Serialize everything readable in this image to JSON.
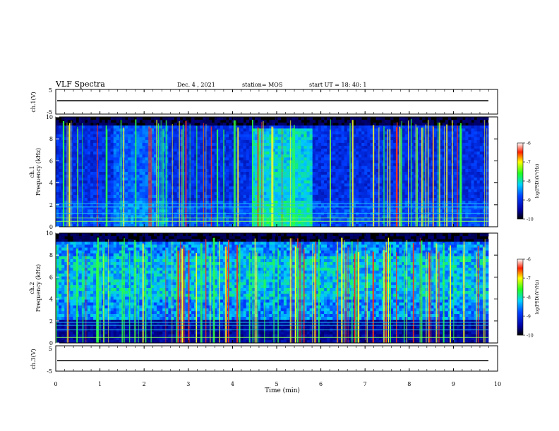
{
  "header": {
    "title": "VLF Spectra",
    "date": "Dec. 4 , 2021",
    "station": "station= MOS",
    "start": "start UT = 18: 40: 1"
  },
  "chart_data": [
    {
      "type": "line",
      "panel": "ch1-waveform",
      "ylabel": "ch.1(V)",
      "ylim": [
        -5,
        5
      ],
      "yticks": [
        "5",
        "-5"
      ],
      "series": [
        {
          "values_description": "flat trace near 0 V",
          "x": [
            0,
            9.85
          ],
          "y": [
            0,
            0
          ]
        }
      ]
    },
    {
      "type": "heatmap",
      "panel": "ch1-spectrogram",
      "ylabel": "ch.1 Frequency (kHz)",
      "ylim": [
        0,
        10
      ],
      "yticks": [
        "0",
        "2",
        "4",
        "6",
        "8",
        "10"
      ],
      "colorbar": {
        "label": "log(PSD)(V^2/Hz)",
        "range": [
          -10,
          -6
        ],
        "ticks": [
          "-6",
          "-7",
          "-8",
          "-9",
          "-10"
        ]
      },
      "notes": [
        "enhanced emission band about 4.5-5.7 min up to ~9 kHz",
        "broadband impulsive events (sferics) throughout",
        "horizontal lines near 0.5, 0.8, 1.2, 1.8, 2.1 kHz"
      ]
    },
    {
      "type": "heatmap",
      "panel": "ch2-spectrogram",
      "ylabel": "ch.2 Frequency (kHz)",
      "ylim": [
        0,
        10
      ],
      "yticks": [
        "0",
        "2",
        "4",
        "6",
        "8",
        "10"
      ],
      "colorbar": {
        "label": "log(PSD)(V^2/Hz)",
        "range": [
          -10,
          -6
        ],
        "ticks": [
          "-6",
          "-7",
          "-8",
          "-9",
          "-10"
        ]
      },
      "notes": [
        "dense broadband sferics 2-10 kHz across whole interval",
        "horizontal lines near 0.5, 1.2, 1.6, 1.9 kHz"
      ]
    },
    {
      "type": "line",
      "panel": "ch3-waveform",
      "ylabel": "ch.3(V)",
      "ylim": [
        -5,
        5
      ],
      "yticks": [
        "5",
        "-5"
      ],
      "series": [
        {
          "values_description": "flat trace near 0 V",
          "x": [
            0,
            9.85
          ],
          "y": [
            0,
            0
          ]
        }
      ]
    }
  ],
  "xaxis": {
    "label": "Time (min)",
    "range": [
      0,
      10
    ],
    "ticks": [
      "0",
      "1",
      "2",
      "3",
      "4",
      "5",
      "6",
      "7",
      "8",
      "9",
      "10"
    ]
  },
  "colorbar_label": "log(PSD)(V²/Hz)",
  "colors": {
    "background": "#000000",
    "low": "#00008c",
    "mid": "#00c8ff",
    "high": "#ff2000"
  }
}
